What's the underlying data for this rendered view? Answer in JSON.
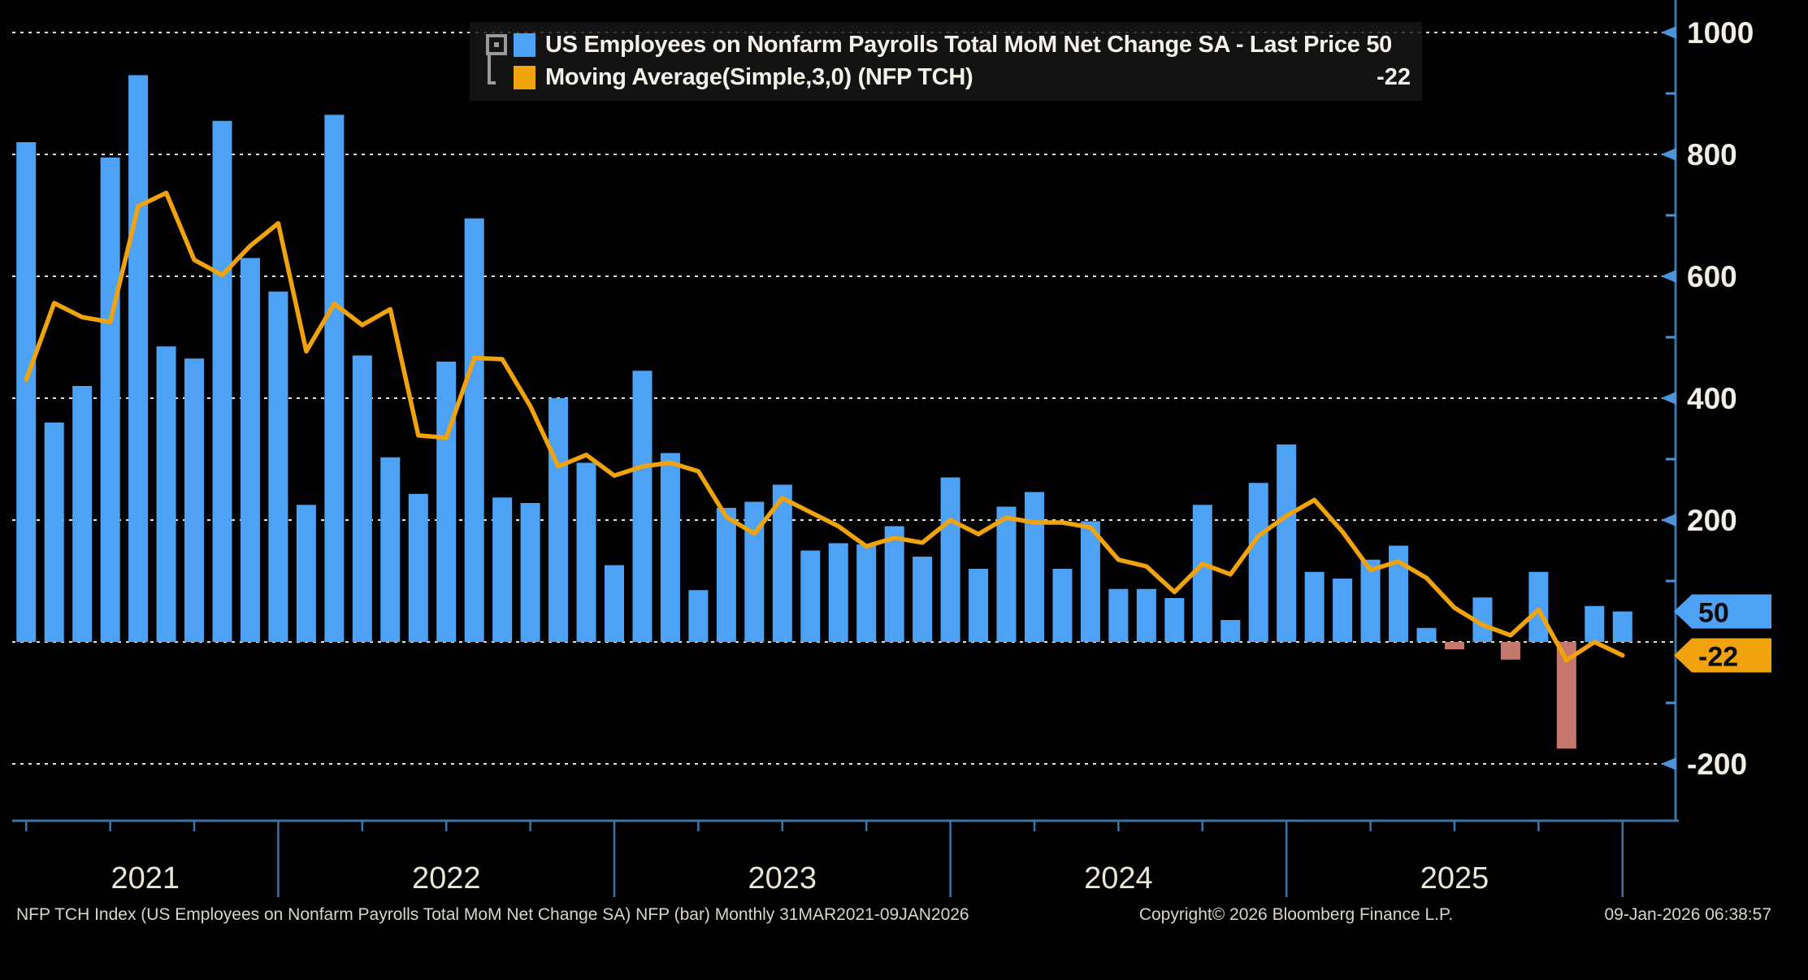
{
  "legend": {
    "series1_label": "US Employees on Nonfarm Payrolls Total MoM Net Change SA - Last Price 50",
    "series2_label": "Moving Average(Simple,3,0) (NFP TCH)",
    "series2_value": "-22"
  },
  "footer": {
    "left": "NFP TCH Index (US Employees on Nonfarm Payrolls Total MoM Net Change SA) NFP (bar) Monthly 31MAR2021-09JAN2026",
    "center": "Copyright© 2026 Bloomberg Finance L.P.",
    "right": "09-Jan-2026 06:38:57"
  },
  "axis_tags": [
    {
      "name": "last-price-tag",
      "text": "50",
      "value": 50,
      "bg": "#4da2f5"
    },
    {
      "name": "moving-average-tag",
      "text": "-22",
      "value": -22,
      "bg": "#f0a30c"
    }
  ],
  "colors": {
    "bar_positive": "#4da2f5",
    "bar_negative": "#c5786d",
    "ma_line": "#f0a30c",
    "axis": "#3b74a8",
    "axis_tick": "#4e93d9",
    "grid": "#e2e2e2",
    "y_label": "#f1eee5",
    "year_label": "#eae6da",
    "tag_text": "#0b0b0b"
  },
  "chart_data": {
    "type": "bar",
    "title": "US Employees on Nonfarm Payrolls Total MoM Net Change SA",
    "xlabel": "",
    "ylabel": "",
    "ylim": [
      -260,
      1050
    ],
    "grid_values": [
      1000,
      800,
      600,
      400,
      200,
      0,
      -200
    ],
    "ytick_labels": [
      1000,
      800,
      600,
      400,
      200,
      -200
    ],
    "yminor_ticks": [
      900,
      700,
      500,
      300,
      100,
      -100
    ],
    "legend_position": "top",
    "categories": [
      "Mar 2021",
      "Apr 2021",
      "May 2021",
      "Jun 2021",
      "Jul 2021",
      "Aug 2021",
      "Sep 2021",
      "Oct 2021",
      "Nov 2021",
      "Dec 2021",
      "Jan 2022",
      "Feb 2022",
      "Mar 2022",
      "Apr 2022",
      "May 2022",
      "Jun 2022",
      "Jul 2022",
      "Aug 2022",
      "Sep 2022",
      "Oct 2022",
      "Nov 2022",
      "Dec 2022",
      "Jan 2023",
      "Feb 2023",
      "Mar 2023",
      "Apr 2023",
      "May 2023",
      "Jun 2023",
      "Jul 2023",
      "Aug 2023",
      "Sep 2023",
      "Oct 2023",
      "Nov 2023",
      "Dec 2023",
      "Jan 2024",
      "Feb 2024",
      "Mar 2024",
      "Apr 2024",
      "May 2024",
      "Jun 2024",
      "Jul 2024",
      "Aug 2024",
      "Sep 2024",
      "Oct 2024",
      "Nov 2024",
      "Dec 2024",
      "Jan 2025",
      "Feb 2025",
      "Mar 2025",
      "Apr 2025",
      "May 2025",
      "Jun 2025",
      "Jul 2025",
      "Aug 2025",
      "Sep 2025",
      "Oct 2025",
      "Nov 2025",
      "Dec 2025"
    ],
    "series": [
      {
        "name": "US Employees on Nonfarm Payrolls Total MoM Net Change SA",
        "type": "bar",
        "last_price": 50,
        "values": [
          820,
          360,
          420,
          795,
          930,
          485,
          465,
          855,
          630,
          575,
          225,
          865,
          470,
          303,
          243,
          460,
          695,
          237,
          228,
          400,
          294,
          126,
          445,
          310,
          85,
          220,
          230,
          258,
          150,
          162,
          160,
          190,
          140,
          270,
          120,
          222,
          246,
          120,
          198,
          87,
          87,
          72,
          225,
          36,
          261,
          324,
          115,
          104,
          135,
          158,
          23,
          -12,
          73,
          -29,
          115,
          -175,
          59,
          50
        ]
      },
      {
        "name": "Moving Average(Simple,3,0) (NFP TCH)",
        "type": "line",
        "last_price": -22,
        "values": [
          430,
          556,
          533,
          525,
          715,
          737,
          627,
          602,
          650,
          687,
          477,
          555,
          520,
          546,
          339,
          335,
          466,
          464,
          387,
          288,
          307,
          273,
          288,
          294,
          280,
          205,
          178,
          236,
          213,
          190,
          157,
          171,
          163,
          200,
          177,
          204,
          196,
          196,
          188,
          135,
          124,
          82,
          128,
          111,
          174,
          207,
          233,
          181,
          118,
          132,
          105,
          56,
          28,
          11,
          53,
          -30,
          0,
          -22
        ]
      }
    ],
    "years": [
      {
        "label": "2021",
        "start": 0,
        "end": 10
      },
      {
        "label": "2022",
        "start": 10,
        "end": 22
      },
      {
        "label": "2023",
        "start": 22,
        "end": 34
      },
      {
        "label": "2024",
        "start": 34,
        "end": 46
      },
      {
        "label": "2025",
        "start": 46,
        "end": 58
      }
    ],
    "year_dividers_at": [
      9,
      21,
      33,
      45,
      57
    ]
  }
}
